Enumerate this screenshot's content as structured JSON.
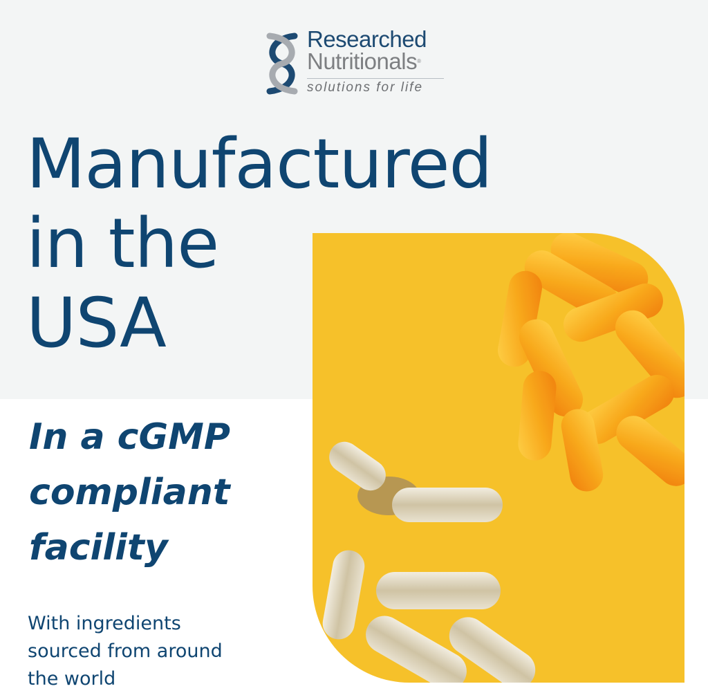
{
  "brand": {
    "name_line1": "Researched",
    "name_line2": "Nutritionals",
    "registered": "®",
    "tagline": "solutions for life"
  },
  "headline": {
    "lines": [
      "Manufactured",
      "in the",
      "USA"
    ]
  },
  "subheading": {
    "lines": [
      "In a cGMP",
      "compliant",
      "facility"
    ]
  },
  "body": {
    "lines": [
      "With ingredients",
      "sourced from around",
      "the world"
    ]
  },
  "colors": {
    "primary_text": "#0f4571",
    "band_background": "#f3f5f5",
    "photo_background": "#f6c12a",
    "softgel": "#f7a21a"
  },
  "image": {
    "subject": "softgel-and-capsules-photo"
  }
}
